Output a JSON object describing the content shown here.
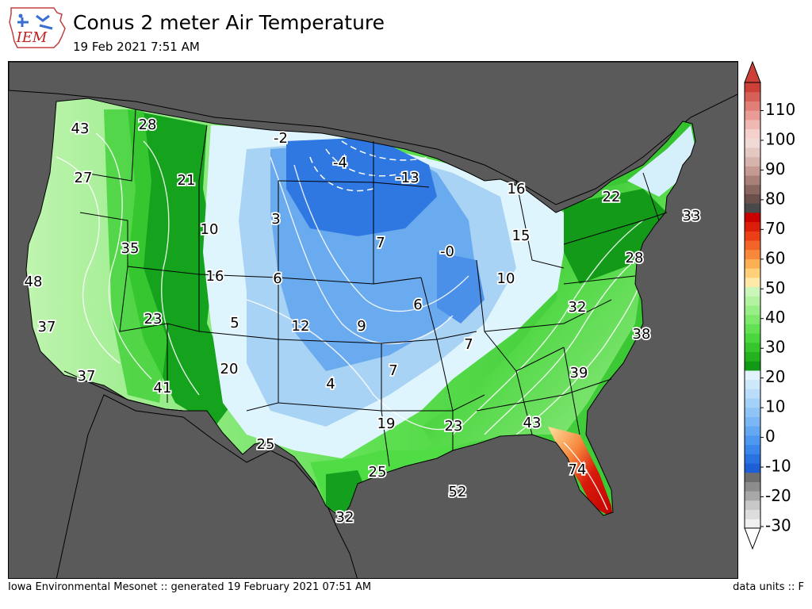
{
  "header": {
    "logo_text": "IEM",
    "title": "Conus 2 meter Air Temperature",
    "subtitle": "19 Feb 2021 7:51 AM"
  },
  "footer": {
    "credit": "Iowa Environmental Mesonet :: generated 19 February 2021 07:51 AM",
    "units": "data units :: F"
  },
  "colors": {
    "ocean": "#595959",
    "deep_blue": "#1f64d8",
    "mid_blue": "#5b9ae8",
    "light_blue": "#a9d3f5",
    "pale_blue": "#dff4fd",
    "light_green": "#a6ef98",
    "mid_green": "#4fdc45",
    "dark_green": "#159f1e",
    "orange": "#f59a4a",
    "red": "#c80000"
  },
  "station_labels": [
    {
      "text": "43"
    },
    {
      "text": "28"
    },
    {
      "text": "-2"
    },
    {
      "text": "-4"
    },
    {
      "text": "-13"
    },
    {
      "text": "16"
    },
    {
      "text": "22"
    },
    {
      "text": "33"
    },
    {
      "text": "27"
    },
    {
      "text": "21"
    },
    {
      "text": "3"
    },
    {
      "text": "10"
    },
    {
      "text": "7"
    },
    {
      "text": "-0"
    },
    {
      "text": "15"
    },
    {
      "text": "35"
    },
    {
      "text": "16"
    },
    {
      "text": "6"
    },
    {
      "text": "10"
    },
    {
      "text": "28"
    },
    {
      "text": "48"
    },
    {
      "text": "6"
    },
    {
      "text": "32"
    },
    {
      "text": "23"
    },
    {
      "text": "5"
    },
    {
      "text": "12"
    },
    {
      "text": "9"
    },
    {
      "text": "37"
    },
    {
      "text": "7"
    },
    {
      "text": "38"
    },
    {
      "text": "20"
    },
    {
      "text": "39"
    },
    {
      "text": "37"
    },
    {
      "text": "41"
    },
    {
      "text": "4"
    },
    {
      "text": "7"
    },
    {
      "text": "19"
    },
    {
      "text": "23"
    },
    {
      "text": "43"
    },
    {
      "text": "25"
    },
    {
      "text": "74"
    },
    {
      "text": "25"
    },
    {
      "text": "52"
    },
    {
      "text": "32"
    }
  ],
  "colorbar": {
    "labels": [
      "110",
      "100",
      "90",
      "80",
      "70",
      "60",
      "50",
      "40",
      "30",
      "20",
      "10",
      "0",
      "-10",
      "-20",
      "-30"
    ],
    "colors": [
      "#f0f0f0",
      "#dddddd",
      "#c8c8c8",
      "#a8a8a8",
      "#8c8c8c",
      "#6e6e6e",
      "#1e5fd6",
      "#2a72e0",
      "#3b86ea",
      "#4f98ef",
      "#64a8f2",
      "#7ab7f4",
      "#8fc4f6",
      "#a4d1f8",
      "#b9ddfa",
      "#cde8fb",
      "#e2f3fd",
      "#119a16",
      "#25b21f",
      "#36c52c",
      "#4ad63d",
      "#63e154",
      "#7ee86d",
      "#98ee87",
      "#b2f2a1",
      "#cbf6bb",
      "#ffe9a8",
      "#ffcf7a",
      "#fdb053",
      "#f8893a",
      "#f26427",
      "#ea3f17",
      "#da1e0a",
      "#c80000",
      "#494949",
      "#6b4f4a",
      "#8a6660",
      "#a88078",
      "#c49a92",
      "#d6b4ad",
      "#e4c8c2",
      "#efdad5",
      "#f6d0cc",
      "#f0b8b2",
      "#e89c95",
      "#e07e77",
      "#d65f58",
      "#cc4038"
    ]
  }
}
